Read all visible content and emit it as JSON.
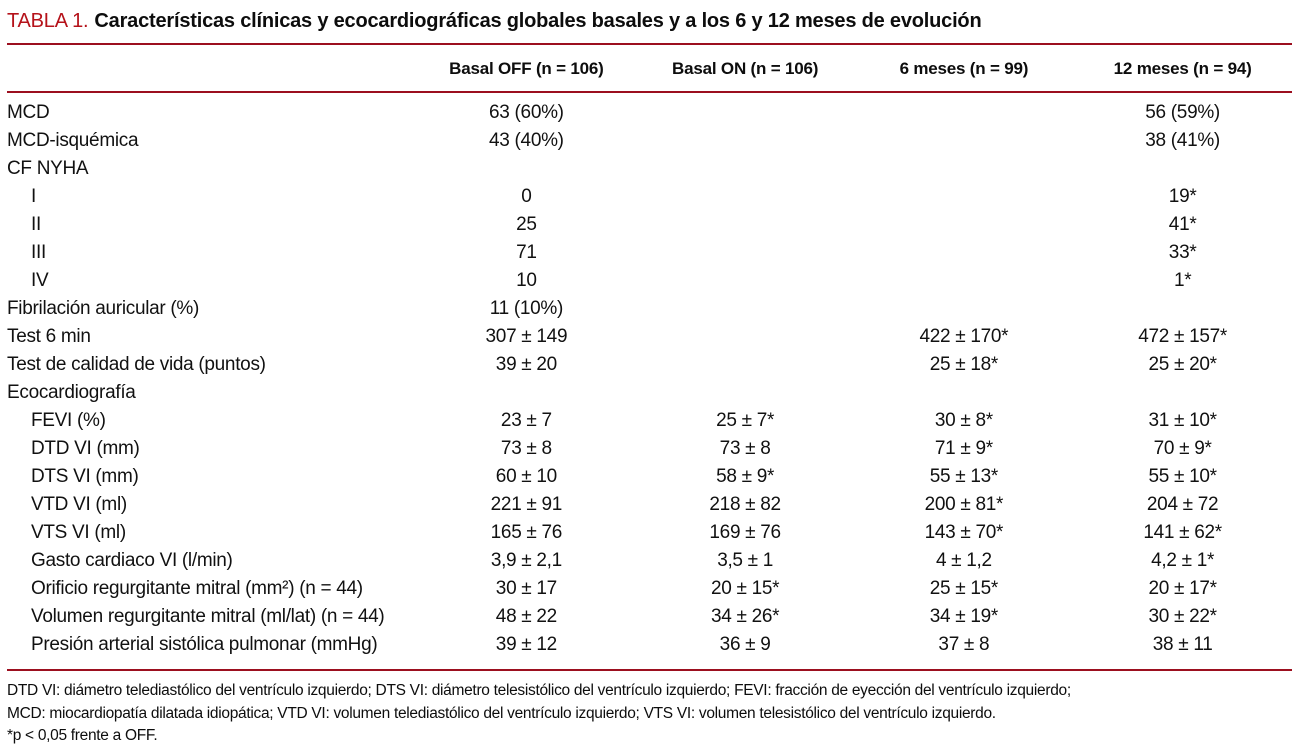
{
  "title": {
    "label": "TABLA 1.",
    "text": "Características clínicas y ecocardiográficas globales basales y a los 6 y 12 meses de evolución"
  },
  "colors": {
    "accent_red": "#b5121a",
    "rule_red": "#9c0f1f"
  },
  "chart_data": {
    "type": "table",
    "title": "TABLA 1. Características clínicas y ecocardiográficas globales basales y a los 6 y 12 meses de evolución",
    "columns": [
      "",
      "Basal OFF (n = 106)",
      "Basal ON (n = 106)",
      "6 meses (n = 99)",
      "12 meses (n = 94)"
    ]
  },
  "table": {
    "columns": [
      "Basal OFF (n = 106)",
      "Basal ON (n = 106)",
      "6 meses (n = 99)",
      "12 meses (n = 94)"
    ],
    "rows": [
      {
        "label": "MCD",
        "indent": false,
        "values": [
          "63 (60%)",
          "",
          "",
          "56 (59%)"
        ]
      },
      {
        "label": "MCD-isquémica",
        "indent": false,
        "values": [
          "43 (40%)",
          "",
          "",
          "38 (41%)"
        ]
      },
      {
        "label": "CF NYHA",
        "indent": false,
        "values": [
          "",
          "",
          "",
          ""
        ]
      },
      {
        "label": "I",
        "indent": true,
        "values": [
          "0",
          "",
          "",
          "19*"
        ]
      },
      {
        "label": "II",
        "indent": true,
        "values": [
          "25",
          "",
          "",
          "41*"
        ]
      },
      {
        "label": "III",
        "indent": true,
        "values": [
          "71",
          "",
          "",
          "33*"
        ]
      },
      {
        "label": "IV",
        "indent": true,
        "values": [
          "10",
          "",
          "",
          "1*"
        ]
      },
      {
        "label": "Fibrilación auricular (%)",
        "indent": false,
        "values": [
          "11 (10%)",
          "",
          "",
          ""
        ]
      },
      {
        "label": "Test 6 min",
        "indent": false,
        "values": [
          "307 ± 149",
          "",
          "422 ± 170*",
          "472 ± 157*"
        ]
      },
      {
        "label": "Test de calidad de vida (puntos)",
        "indent": false,
        "values": [
          "39 ± 20",
          "",
          "25 ± 18*",
          "25 ± 20*"
        ]
      },
      {
        "label": "Ecocardiografía",
        "indent": false,
        "values": [
          "",
          "",
          "",
          ""
        ]
      },
      {
        "label": "FEVI (%)",
        "indent": true,
        "values": [
          "23 ± 7",
          "25 ± 7*",
          "30 ± 8*",
          "31 ± 10*"
        ]
      },
      {
        "label": "DTD VI (mm)",
        "indent": true,
        "values": [
          "73 ± 8",
          "73 ± 8",
          "71 ± 9*",
          "70 ± 9*"
        ]
      },
      {
        "label": "DTS VI (mm)",
        "indent": true,
        "values": [
          "60 ± 10",
          "58 ± 9*",
          "55 ± 13*",
          "55 ± 10*"
        ]
      },
      {
        "label": "VTD VI (ml)",
        "indent": true,
        "values": [
          "221 ± 91",
          "218 ± 82",
          "200 ± 81*",
          "204 ± 72"
        ]
      },
      {
        "label": "VTS VI (ml)",
        "indent": true,
        "values": [
          "165 ± 76",
          "169 ± 76",
          "143 ± 70*",
          "141 ± 62*"
        ]
      },
      {
        "label": "Gasto cardiaco VI (l/min)",
        "indent": true,
        "values": [
          "3,9 ± 2,1",
          "3,5 ± 1",
          "4 ± 1,2",
          "4,2 ± 1*"
        ]
      },
      {
        "label": "Orificio regurgitante mitral (mm²) (n = 44)",
        "indent": true,
        "values": [
          "30 ± 17",
          "20 ± 15*",
          "25 ± 15*",
          "20 ± 17*"
        ]
      },
      {
        "label": "Volumen regurgitante mitral (ml/lat) (n = 44)",
        "indent": true,
        "values": [
          "48 ± 22",
          "34 ± 26*",
          "34 ± 19*",
          "30 ± 22*"
        ]
      },
      {
        "label": "Presión arterial sistólica pulmonar (mmHg)",
        "indent": true,
        "values": [
          "39 ± 12",
          "36 ± 9",
          "37 ± 8",
          "38 ± 11"
        ]
      }
    ]
  },
  "footnotes": [
    "DTD VI: diámetro telediastólico del ventrículo izquierdo; DTS VI: diámetro telesistólico del ventrículo izquierdo; FEVI: fracción de eyección del ventrículo izquierdo;",
    "MCD: miocardiopatía dilatada idiopática; VTD VI: volumen telediastólico del ventrículo izquierdo; VTS VI: volumen telesistólico del ventrículo izquierdo.",
    "*p < 0,05 frente a OFF."
  ]
}
